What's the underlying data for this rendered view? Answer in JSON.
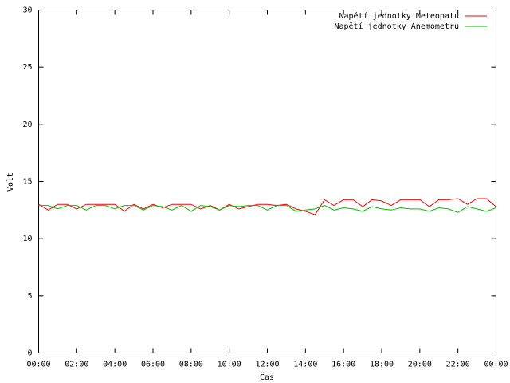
{
  "chart_data": {
    "type": "line",
    "x_label": "Čas",
    "y_label": "Volt",
    "x": [
      0,
      0.5,
      1,
      1.5,
      2,
      2.5,
      3,
      3.5,
      4,
      4.5,
      5,
      5.5,
      6,
      6.5,
      7,
      7.5,
      8,
      8.5,
      9,
      9.5,
      10,
      10.5,
      11,
      11.5,
      12,
      12.5,
      13,
      13.5,
      14,
      14.5,
      15,
      15.5,
      16,
      16.5,
      17,
      17.5,
      18,
      18.5,
      19,
      19.5,
      20,
      20.5,
      21,
      21.5,
      22,
      22.5,
      23,
      23.5,
      24
    ],
    "series": [
      {
        "name": "Napětí jednotky Meteopatu",
        "color": "#ff0000",
        "values": [
          13.0,
          12.5,
          13.0,
          13.0,
          12.6,
          13.0,
          13.0,
          13.0,
          13.0,
          12.4,
          13.0,
          12.6,
          13.0,
          12.7,
          13.0,
          13.0,
          13.0,
          12.6,
          12.9,
          12.5,
          13.0,
          12.6,
          12.8,
          13.0,
          13.0,
          12.9,
          13.0,
          12.6,
          12.4,
          12.1,
          13.4,
          12.9,
          13.4,
          13.4,
          12.8,
          13.4,
          13.3,
          12.9,
          13.4,
          13.4,
          13.4,
          12.8,
          13.4,
          13.4,
          13.5,
          13.0,
          13.5,
          13.5,
          12.8
        ]
      },
      {
        "name": "Napětí jednotky Anemometru",
        "color": "#00c000",
        "values": [
          12.9,
          12.9,
          12.6,
          12.9,
          12.9,
          12.5,
          12.9,
          12.9,
          12.6,
          12.9,
          12.9,
          12.5,
          12.9,
          12.8,
          12.5,
          12.9,
          12.4,
          12.9,
          12.8,
          12.5,
          12.9,
          12.8,
          12.9,
          12.9,
          12.5,
          12.9,
          12.9,
          12.4,
          12.5,
          12.6,
          12.9,
          12.5,
          12.7,
          12.6,
          12.4,
          12.8,
          12.6,
          12.5,
          12.7,
          12.6,
          12.6,
          12.4,
          12.7,
          12.6,
          12.3,
          12.8,
          12.6,
          12.4,
          12.7
        ]
      }
    ],
    "xlim": [
      0,
      24
    ],
    "xticks": [
      {
        "value": 0,
        "label": "00:00"
      },
      {
        "value": 2,
        "label": "02:00"
      },
      {
        "value": 4,
        "label": "04:00"
      },
      {
        "value": 6,
        "label": "06:00"
      },
      {
        "value": 8,
        "label": "08:00"
      },
      {
        "value": 10,
        "label": "10:00"
      },
      {
        "value": 12,
        "label": "12:00"
      },
      {
        "value": 14,
        "label": "14:00"
      },
      {
        "value": 16,
        "label": "16:00"
      },
      {
        "value": 18,
        "label": "18:00"
      },
      {
        "value": 20,
        "label": "20:00"
      },
      {
        "value": 22,
        "label": "22:00"
      },
      {
        "value": 24,
        "label": "00:00"
      }
    ],
    "ylim": [
      0,
      30
    ],
    "yticks": [
      0,
      5,
      10,
      15,
      20,
      25,
      30
    ],
    "grid": false,
    "legend": "top-right"
  }
}
